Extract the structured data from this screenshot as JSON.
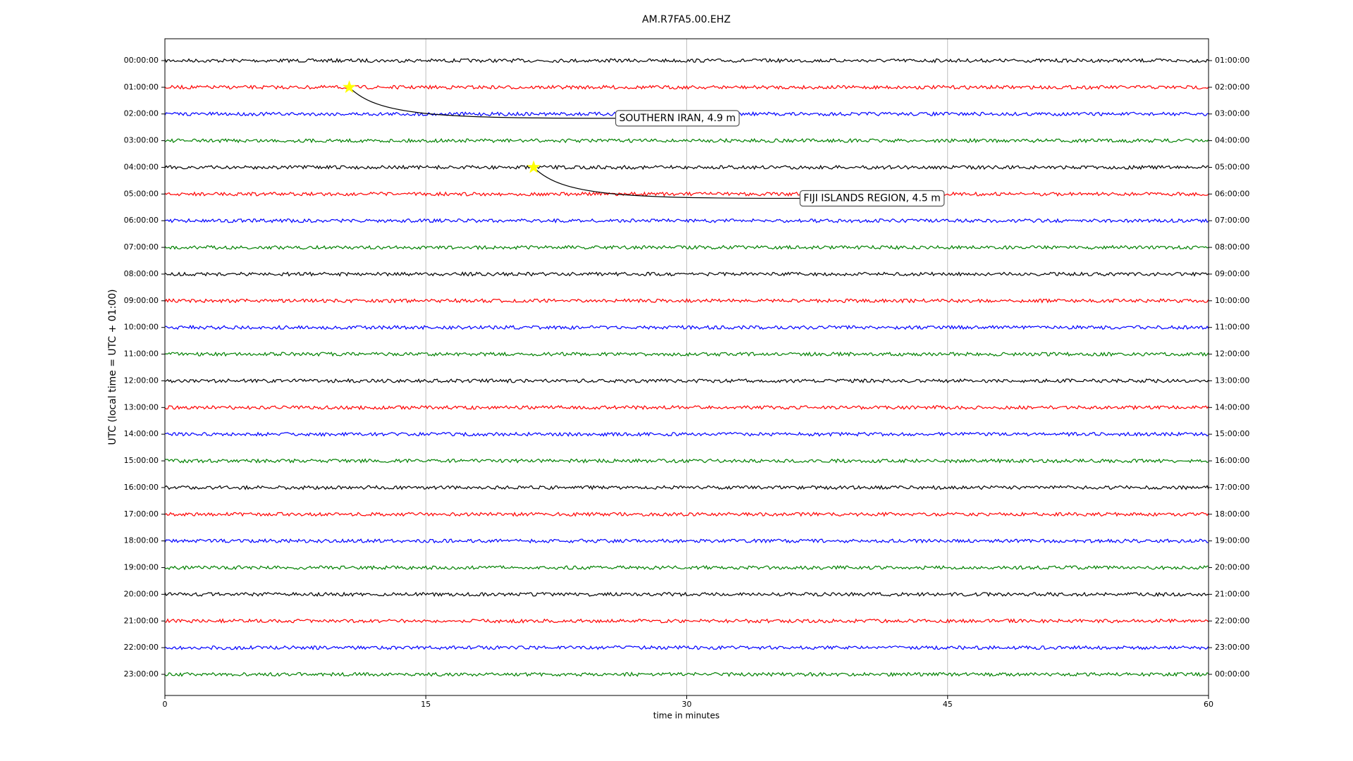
{
  "chart_data": {
    "type": "dayplot",
    "title": "AM.R7FA5.00.EHZ",
    "x_label": "time in minutes",
    "y_label": "UTC (local time = UTC + 01:00)",
    "xlim": [
      0,
      60
    ],
    "xticks": [
      0,
      15,
      30,
      45,
      60
    ],
    "grid": true,
    "categories": [
      "00:00:00",
      "01:00:00",
      "02:00:00",
      "03:00:00",
      "04:00:00",
      "05:00:00",
      "06:00:00",
      "07:00:00",
      "08:00:00",
      "09:00:00",
      "10:00:00",
      "11:00:00",
      "12:00:00",
      "13:00:00",
      "14:00:00",
      "15:00:00",
      "16:00:00",
      "17:00:00",
      "18:00:00",
      "19:00:00",
      "20:00:00",
      "21:00:00",
      "22:00:00",
      "23:00:00"
    ],
    "right_labels": [
      "01:00:00",
      "02:00:00",
      "03:00:00",
      "04:00:00",
      "05:00:00",
      "06:00:00",
      "07:00:00",
      "08:00:00",
      "09:00:00",
      "10:00:00",
      "11:00:00",
      "12:00:00",
      "13:00:00",
      "14:00:00",
      "15:00:00",
      "16:00:00",
      "17:00:00",
      "18:00:00",
      "19:00:00",
      "20:00:00",
      "21:00:00",
      "22:00:00",
      "23:00:00",
      "00:00:00"
    ],
    "colors": [
      "#000000",
      "#ff0000",
      "#0000ff",
      "#008000"
    ],
    "events": [
      {
        "name": "SOUTHERN IRAN, 4.9 m",
        "x": 10.6,
        "row": "01:00:00",
        "marker_color": "#ffff00"
      },
      {
        "name": "FIJI ISLANDS REGION, 4.5 m",
        "x": 21.2,
        "row": "04:00:00",
        "marker_color": "#ffff00"
      }
    ]
  }
}
